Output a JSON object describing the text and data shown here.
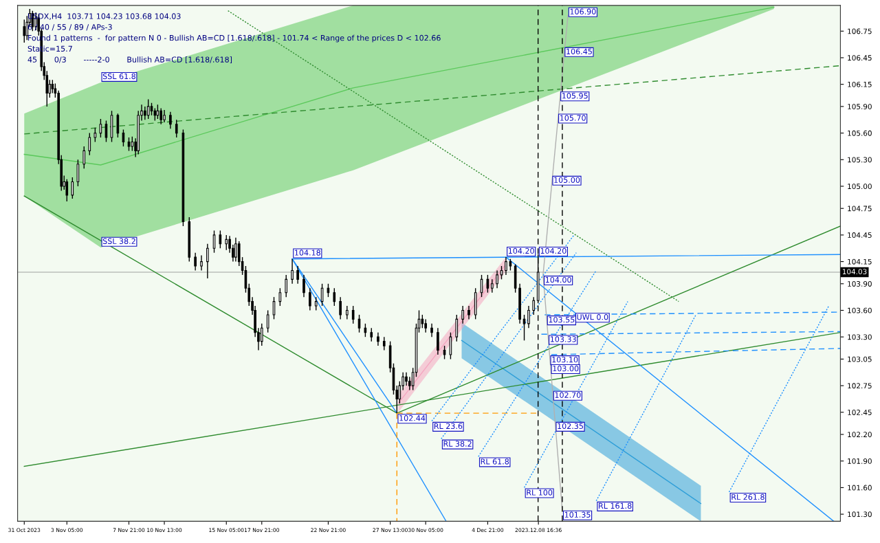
{
  "chart_data": {
    "type": "candlestick",
    "x": [
      "2023-10-31T00:00",
      "2023-10-31T05:00",
      "2023-10-31T10:00",
      "2023-10-31T15:00",
      "2023-10-31T21:00",
      "2023-11-01T02:00",
      "2023-11-01T07:00",
      "2023-11-01T12:00",
      "2023-11-01T17:00",
      "2023-11-01T22:00",
      "2023-11-02T03:00",
      "2023-11-02T08:00",
      "2023-11-02T14:00",
      "2023-11-02T19:00",
      "2023-11-03T00:00",
      "2023-11-03T05:00",
      "2023-11-03T15:00",
      "2023-11-04T01:00",
      "2023-11-04T12:00",
      "2023-11-04T22:00",
      "2023-11-05T08:00",
      "2023-11-05T18:00",
      "2023-11-06T04:00",
      "2023-11-06T14:00",
      "2023-11-07T01:00",
      "2023-11-07T11:00",
      "2023-11-07T21:00",
      "2023-11-08T03:00",
      "2023-11-08T09:00",
      "2023-11-08T14:00",
      "2023-11-08T20:00",
      "2023-11-09T02:00",
      "2023-11-09T08:00",
      "2023-11-09T14:00",
      "2023-11-09T20:00",
      "2023-11-10T01:00",
      "2023-11-10T07:00",
      "2023-11-10T13:00",
      "2023-11-11T00:00",
      "2023-11-11T11:00",
      "2023-11-11T23:00",
      "2023-11-12T10:00",
      "2023-11-12T21:00",
      "2023-11-13T08:00",
      "2023-11-13T19:00",
      "2023-11-14T07:00",
      "2023-11-14T18:00",
      "2023-11-15T05:00",
      "2023-11-15T11:00",
      "2023-11-15T17:00",
      "2023-11-15T22:00",
      "2023-11-16T04:00",
      "2023-11-16T10:00",
      "2023-11-16T16:00",
      "2023-11-16T22:00",
      "2023-11-17T04:00",
      "2023-11-17T09:00",
      "2023-11-17T15:00",
      "2023-11-17T21:00",
      "2023-11-18T08:00",
      "2023-11-18T19:00",
      "2023-11-19T06:00",
      "2023-11-19T17:00",
      "2023-11-20T04:00",
      "2023-11-20T14:00",
      "2023-11-21T01:00",
      "2023-11-21T12:00",
      "2023-11-21T23:00",
      "2023-11-22T10:00",
      "2023-11-22T21:00",
      "2023-11-23T08:00",
      "2023-11-23T19:00",
      "2023-11-24T07:00",
      "2023-11-24T18:00",
      "2023-11-25T05:00",
      "2023-11-25T16:00",
      "2023-11-26T03:00",
      "2023-11-26T15:00",
      "2023-11-27T02:00",
      "2023-11-27T13:00",
      "2023-11-27T19:00",
      "2023-11-28T01:00",
      "2023-11-28T06:00",
      "2023-11-28T12:00",
      "2023-11-28T18:00",
      "2023-11-29T00:00",
      "2023-11-29T06:00",
      "2023-11-29T12:00",
      "2023-11-29T17:00",
      "2023-11-29T23:00",
      "2023-11-30T05:00",
      "2023-11-30T16:00",
      "2023-12-01T03:00",
      "2023-12-01T15:00",
      "2023-12-02T02:00",
      "2023-12-02T13:00",
      "2023-12-03T00:00",
      "2023-12-03T11:00",
      "2023-12-03T23:00",
      "2023-12-04T10:00",
      "2023-12-04T21:00",
      "2023-12-05T05:00",
      "2023-12-05T14:00",
      "2023-12-05T22:00",
      "2023-12-06T06:00",
      "2023-12-06T14:00",
      "2023-12-06T23:00",
      "2023-12-07T07:00",
      "2023-12-07T15:00",
      "2023-12-07T23:00",
      "2023-12-08T08:00",
      "2023-12-08T16:00"
    ],
    "ohlc": [
      [
        106.8,
        106.88,
        106.62,
        106.7
      ],
      [
        106.7,
        106.92,
        106.65,
        106.85
      ],
      [
        106.85,
        107.0,
        106.8,
        106.95
      ],
      [
        106.95,
        106.98,
        106.75,
        106.8
      ],
      [
        106.8,
        106.96,
        106.76,
        106.9
      ],
      [
        106.9,
        106.94,
        106.7,
        106.75
      ],
      [
        106.75,
        106.78,
        106.3,
        106.35
      ],
      [
        106.35,
        106.4,
        106.2,
        106.25
      ],
      [
        106.25,
        106.3,
        105.9,
        106.05
      ],
      [
        106.05,
        106.2,
        106.0,
        106.15
      ],
      [
        106.15,
        106.2,
        106.05,
        106.1
      ],
      [
        106.1,
        106.16,
        106.0,
        106.05
      ],
      [
        106.05,
        106.08,
        105.25,
        105.3
      ],
      [
        105.3,
        105.35,
        104.95,
        105.0
      ],
      [
        105.0,
        105.12,
        104.96,
        105.05
      ],
      [
        105.05,
        105.08,
        104.83,
        104.9
      ],
      [
        104.9,
        105.1,
        104.86,
        105.05
      ],
      [
        105.05,
        105.3,
        105.0,
        105.25
      ],
      [
        105.25,
        105.45,
        105.2,
        105.4
      ],
      [
        105.4,
        105.6,
        105.35,
        105.55
      ],
      [
        105.55,
        105.66,
        105.5,
        105.6
      ],
      [
        105.6,
        105.76,
        105.55,
        105.7
      ],
      [
        105.7,
        105.74,
        105.5,
        105.55
      ],
      [
        105.55,
        105.85,
        105.5,
        105.8
      ],
      [
        105.8,
        105.82,
        105.55,
        105.6
      ],
      [
        105.6,
        105.64,
        105.45,
        105.5
      ],
      [
        105.5,
        105.55,
        105.4,
        105.45
      ],
      [
        105.45,
        105.56,
        105.4,
        105.5
      ],
      [
        105.5,
        105.54,
        105.33,
        105.4
      ],
      [
        105.4,
        105.85,
        105.36,
        105.8
      ],
      [
        105.8,
        105.92,
        105.74,
        105.85
      ],
      [
        105.85,
        105.9,
        105.75,
        105.8
      ],
      [
        105.8,
        105.98,
        105.76,
        105.9
      ],
      [
        105.9,
        105.94,
        105.8,
        105.85
      ],
      [
        105.85,
        105.88,
        105.74,
        105.8
      ],
      [
        105.8,
        105.92,
        105.76,
        105.85
      ],
      [
        105.85,
        105.88,
        105.7,
        105.75
      ],
      [
        105.75,
        105.86,
        105.72,
        105.8
      ],
      [
        105.8,
        105.84,
        105.65,
        105.7
      ],
      [
        105.7,
        105.75,
        105.55,
        105.6
      ],
      [
        105.6,
        105.64,
        104.55,
        104.6
      ],
      [
        104.6,
        104.65,
        104.15,
        104.2
      ],
      [
        104.2,
        104.25,
        104.05,
        104.1
      ],
      [
        104.1,
        104.22,
        104.05,
        104.15
      ],
      [
        104.15,
        104.35,
        103.96,
        104.3
      ],
      [
        104.3,
        104.5,
        104.25,
        104.45
      ],
      [
        104.45,
        104.5,
        104.3,
        104.35
      ],
      [
        104.35,
        104.45,
        104.28,
        104.4
      ],
      [
        104.4,
        104.44,
        104.25,
        104.3
      ],
      [
        104.3,
        104.34,
        104.15,
        104.2
      ],
      [
        104.2,
        104.42,
        104.15,
        104.35
      ],
      [
        104.35,
        104.38,
        104.1,
        104.15
      ],
      [
        104.15,
        104.2,
        104.0,
        104.05
      ],
      [
        104.05,
        104.1,
        103.8,
        103.85
      ],
      [
        103.85,
        103.9,
        103.65,
        103.7
      ],
      [
        103.7,
        103.75,
        103.55,
        103.6
      ],
      [
        103.6,
        103.65,
        103.3,
        103.35
      ],
      [
        103.35,
        103.4,
        103.15,
        103.25
      ],
      [
        103.25,
        103.45,
        103.2,
        103.4
      ],
      [
        103.4,
        103.6,
        103.35,
        103.55
      ],
      [
        103.55,
        103.75,
        103.5,
        103.7
      ],
      [
        103.7,
        103.85,
        103.65,
        103.8
      ],
      [
        103.8,
        104.0,
        103.75,
        103.95
      ],
      [
        103.95,
        104.18,
        103.9,
        104.05
      ],
      [
        104.05,
        104.1,
        103.9,
        103.95
      ],
      [
        103.95,
        104.0,
        103.75,
        103.8
      ],
      [
        103.8,
        103.85,
        103.6,
        103.65
      ],
      [
        103.65,
        103.75,
        103.6,
        103.7
      ],
      [
        103.7,
        103.9,
        103.65,
        103.85
      ],
      [
        103.85,
        103.9,
        103.75,
        103.8
      ],
      [
        103.8,
        103.85,
        103.65,
        103.7
      ],
      [
        103.7,
        103.75,
        103.5,
        103.55
      ],
      [
        103.55,
        103.65,
        103.5,
        103.6
      ],
      [
        103.6,
        103.65,
        103.45,
        103.5
      ],
      [
        103.5,
        103.55,
        103.35,
        103.4
      ],
      [
        103.4,
        103.45,
        103.3,
        103.35
      ],
      [
        103.35,
        103.4,
        103.25,
        103.3
      ],
      [
        103.3,
        103.35,
        103.2,
        103.25
      ],
      [
        103.25,
        103.3,
        103.15,
        103.2
      ],
      [
        103.2,
        103.25,
        102.9,
        102.95
      ],
      [
        102.95,
        103.0,
        102.65,
        102.7
      ],
      [
        102.7,
        102.75,
        102.44,
        102.6
      ],
      [
        102.6,
        102.8,
        102.55,
        102.75
      ],
      [
        102.75,
        102.9,
        102.7,
        102.85
      ],
      [
        102.85,
        102.9,
        102.75,
        102.8
      ],
      [
        102.8,
        102.85,
        102.7,
        102.75
      ],
      [
        102.75,
        102.95,
        102.7,
        102.9
      ],
      [
        102.9,
        103.45,
        102.85,
        103.4
      ],
      [
        103.4,
        103.6,
        103.35,
        103.5
      ],
      [
        103.5,
        103.55,
        103.4,
        103.45
      ],
      [
        103.45,
        103.5,
        103.35,
        103.4
      ],
      [
        103.4,
        103.45,
        103.3,
        103.35
      ],
      [
        103.35,
        103.4,
        103.1,
        103.15
      ],
      [
        103.15,
        103.2,
        103.05,
        103.1
      ],
      [
        103.1,
        103.35,
        103.05,
        103.3
      ],
      [
        103.3,
        103.55,
        103.25,
        103.5
      ],
      [
        103.5,
        103.65,
        103.45,
        103.6
      ],
      [
        103.6,
        103.65,
        103.5,
        103.55
      ],
      [
        103.55,
        103.85,
        103.5,
        103.8
      ],
      [
        103.8,
        104.0,
        103.75,
        103.95
      ],
      [
        103.95,
        104.0,
        103.8,
        103.85
      ],
      [
        103.85,
        103.95,
        103.8,
        103.9
      ],
      [
        103.9,
        104.05,
        103.85,
        104.0
      ],
      [
        104.0,
        104.1,
        103.95,
        104.05
      ],
      [
        104.05,
        104.2,
        104.0,
        104.15
      ],
      [
        104.15,
        104.18,
        104.05,
        104.1
      ],
      [
        104.1,
        104.12,
        103.8,
        103.85
      ],
      [
        103.85,
        103.9,
        103.45,
        103.5
      ],
      [
        103.5,
        103.55,
        103.26,
        103.45
      ],
      [
        103.45,
        103.65,
        103.4,
        103.6
      ],
      [
        103.6,
        103.75,
        103.55,
        103.71
      ],
      [
        103.71,
        104.23,
        103.68,
        104.03
      ]
    ],
    "series": [
      {
        "type": "line",
        "color": "#5cc95c",
        "x": [
          "2023-10-31T00:00",
          "2023-11-05T18:00",
          "2023-11-24T18:00",
          "2023-12-26T10:00"
        ],
        "values": [
          105.36,
          105.24,
          106.11,
          107.02
        ],
        "lower": [
          104.89,
          104.31,
          105.18,
          107.0
        ],
        "upper": [
          105.82,
          106.17,
          107.04,
          107.04
        ]
      },
      {
        "type": "line",
        "color": "#2f9fd8",
        "x": [
          "2023-12-02T22:00",
          "2023-12-20T22:00"
        ],
        "values": [
          103.26,
          101.42
        ],
        "lower": [
          103.06,
          101.22
        ],
        "upper": [
          103.46,
          101.62
        ]
      },
      {
        "type": "line",
        "color": "#f4a6c0",
        "x": [
          "2023-11-28T03:30",
          "2023-12-06T06:00"
        ],
        "values": [
          102.55,
          104.12
        ],
        "lower": [
          102.45,
          104.04
        ],
        "upper": [
          102.65,
          104.2
        ]
      },
      {
        "type": "line",
        "color": "#2e8b2e",
        "x": [
          "2023-10-31T00:00",
          "2023-11-28T01:00"
        ],
        "values": [
          104.89,
          102.44
        ]
      },
      {
        "type": "line",
        "color": "#2e8b2e",
        "x": [
          "2023-11-28T01:00",
          "2023-12-31T10:00"
        ],
        "values": [
          102.44,
          104.55
        ]
      },
      {
        "type": "line",
        "color": "#2e8b2e",
        "x": [
          "2023-10-31T00:00",
          "2023-12-31T10:00"
        ],
        "values": [
          101.84,
          103.35
        ]
      },
      {
        "type": "line",
        "color": "#2e8b2e",
        "line_style": "dashed",
        "x": [
          "2023-10-31T00:00",
          "2023-12-31T10:00"
        ],
        "values": [
          105.59,
          106.36
        ]
      },
      {
        "type": "line",
        "color": "#2e8b2e",
        "line_style": "dotted",
        "x": [
          "2023-11-15T08:00",
          "2023-12-19T06:00"
        ],
        "values": [
          106.98,
          103.7
        ]
      },
      {
        "type": "line",
        "color": "#1e90ff",
        "x": [
          "2023-11-20T04:00",
          "2023-12-31T10:00"
        ],
        "values": [
          104.18,
          104.23
        ]
      },
      {
        "type": "line",
        "color": "#1e90ff",
        "x": [
          "2023-11-20T04:00",
          "2023-11-28T01:00"
        ],
        "values": [
          104.18,
          102.44
        ]
      },
      {
        "type": "line",
        "color": "#1e90ff",
        "x": [
          "2023-11-20T04:00",
          "2023-12-01T18:00"
        ],
        "values": [
          104.18,
          101.22
        ]
      },
      {
        "type": "line",
        "color": "#1e90ff",
        "line_style": "dashed",
        "x": [
          "2023-12-09T04:00",
          "2023-12-31T10:00"
        ],
        "values": [
          103.55,
          103.58
        ]
      },
      {
        "type": "line",
        "color": "#1e90ff",
        "line_style": "dashed",
        "x": [
          "2023-12-08T22:00",
          "2023-12-31T10:00"
        ],
        "values": [
          103.33,
          103.36
        ]
      },
      {
        "type": "line",
        "color": "#1e90ff",
        "line_style": "dashed",
        "x": [
          "2023-12-09T16:00",
          "2023-12-31T10:00"
        ],
        "values": [
          103.1,
          103.17
        ]
      },
      {
        "type": "line",
        "color": "#ff9900",
        "line_style": "dashed",
        "x": [
          "2023-11-28T01:00",
          "2023-12-08T16:00"
        ],
        "values": [
          102.44,
          102.44
        ]
      },
      {
        "type": "line",
        "color": "#ff9900",
        "line_style": "dashed",
        "x": [
          "2023-11-28T01:00",
          "2023-11-28T01:00"
        ],
        "values": [
          102.44,
          101.22
        ]
      },
      {
        "type": "line",
        "color": "#b0b0b0",
        "x": [
          "2023-12-10T22:00",
          "2023-12-09T01:00",
          "2023-12-10T11:48"
        ],
        "values": [
          106.93,
          104.0,
          101.34
        ]
      },
      {
        "type": "line",
        "color": "#1e90ff",
        "line_style": "dotted",
        "x": [
          "2023-11-30T16:00",
          "2023-12-11T09:00"
        ],
        "values": [
          102.35,
          104.45
        ]
      },
      {
        "type": "line",
        "color": "#1e90ff",
        "line_style": "dotted",
        "x": [
          "2023-12-01T09:00",
          "2023-12-11T13:00"
        ],
        "values": [
          102.15,
          104.25
        ]
      },
      {
        "type": "line",
        "color": "#1e90ff",
        "line_style": "dotted",
        "x": [
          "2023-12-04T04:12",
          "2023-12-13T01:00"
        ],
        "values": [
          101.95,
          104.05
        ]
      },
      {
        "type": "line",
        "color": "#1e90ff",
        "line_style": "dotted",
        "x": [
          "2023-12-07T15:00",
          "2023-12-15T10:00"
        ],
        "values": [
          101.6,
          103.7
        ]
      },
      {
        "type": "line",
        "color": "#1e90ff",
        "line_style": "dotted",
        "x": [
          "2023-12-13T01:00",
          "2023-12-20T13:00"
        ],
        "values": [
          101.45,
          103.55
        ]
      },
      {
        "type": "line",
        "color": "#1e90ff",
        "line_style": "dotted",
        "x": [
          "2023-12-23T01:00",
          "2023-12-30T13:00"
        ],
        "values": [
          101.55,
          103.65
        ]
      },
      {
        "type": "line",
        "color": "#1e90ff",
        "x": [
          "2023-12-06T06:00",
          "2023-12-30T22:00"
        ],
        "values": [
          104.2,
          101.22
        ]
      }
    ],
    "ref_lines": [
      {
        "axis": "x",
        "value": "2023-12-08T16:00",
        "color": "#000000",
        "line_style": "dashed"
      },
      {
        "axis": "x",
        "value": "2023-12-10T11:48",
        "color": "#000000",
        "line_style": "dashed"
      },
      {
        "axis": "y",
        "value": 104.03,
        "label": "104.03",
        "color": "#a0a0a0",
        "line_style": "solid"
      }
    ],
    "annotations": [
      "USDX,H4  103.71 104.23 103.68 104.03",
      "6 / 40 / 55 / 89 / APs-3",
      "Found 1 patterns  -  for pattern N 0 - Bullish AB=CD [1.618/.618] - 101.74 < Range of the prices D < 102.66",
      "Static=15.7",
      "45       0/3       -----2-0       Bullish AB=CD [1.618/.618]",
      {
        "text": "106.90",
        "x": "2023-12-10T21:24",
        "y": 106.9
      },
      {
        "text": "106.45",
        "x": "2023-12-10T14:37",
        "y": 106.45
      },
      {
        "text": "105.95",
        "x": "2023-12-10T06:56",
        "y": 105.95
      },
      {
        "text": "105.70",
        "x": "2023-12-10T03:06",
        "y": 105.7
      },
      {
        "text": "105.00",
        "x": "2023-12-09T16:22",
        "y": 105.0
      },
      {
        "text": "104.20",
        "x": "2023-12-08T16:00",
        "y": 104.2
      },
      {
        "text": "104.00",
        "x": "2023-12-09T01:00",
        "y": 104.0
      },
      {
        "text": "103.55",
        "x": "2023-12-09T06:53",
        "y": 103.55
      },
      {
        "text": "103.33",
        "x": "2023-12-09T09:46",
        "y": 103.33
      },
      {
        "text": "103.10",
        "x": "2023-12-09T12:46",
        "y": 103.1
      },
      {
        "text": "103.00",
        "x": "2023-12-09T14:05",
        "y": 103.0
      },
      {
        "text": "102.70",
        "x": "2023-12-09T18:02",
        "y": 102.7
      },
      {
        "text": "102.35",
        "x": "2023-12-09T22:36",
        "y": 102.35
      },
      {
        "text": "101.35",
        "x": "2023-12-10T11:41",
        "y": 101.35
      },
      {
        "text": "104.18",
        "x": "2023-11-20T04:00",
        "y": 104.18
      },
      {
        "text": "104.20",
        "x": "2023-12-06T06:00",
        "y": 104.2
      },
      {
        "text": "102.44",
        "x": "2023-11-28T01:00",
        "y": 102.44
      },
      {
        "text": "SSL 61.8",
        "x": "2023-11-05T18:00",
        "y": 106.17
      },
      {
        "text": "SSL 38.2",
        "x": "2023-11-05T18:00",
        "y": 104.31
      },
      {
        "text": "UWL 0.0",
        "x": "2023-12-11T10:00",
        "y": 103.58
      },
      {
        "text": "RL 23.6",
        "x": "2023-11-30T16:00",
        "y": 102.35
      },
      {
        "text": "RL 38.2",
        "x": "2023-12-01T09:00",
        "y": 102.15
      },
      {
        "text": "RL 61.8",
        "x": "2023-12-04T04:12",
        "y": 101.95
      },
      {
        "text": "RL 100",
        "x": "2023-12-07T15:00",
        "y": 101.6
      },
      {
        "text": "RL 161.8",
        "x": "2023-12-13T01:00",
        "y": 101.45
      },
      {
        "text": "RL 261.8",
        "x": "2023-12-23T01:00",
        "y": 101.55
      }
    ],
    "xlim": [
      "2023-10-30T12:00",
      "2023-12-31T10:00"
    ],
    "xticks": [
      {
        "value": "2023-10-31T00:00",
        "label": "31 Oct 2023"
      },
      {
        "value": "2023-11-03T05:00",
        "label": "3 Nov 05:00"
      },
      {
        "value": "2023-11-07T21:00",
        "label": "7 Nov 21:00"
      },
      {
        "value": "2023-11-10T13:00",
        "label": "10 Nov 13:00"
      },
      {
        "value": "2023-11-15T05:00",
        "label": "15 Nov 05:00"
      },
      {
        "value": "2023-11-17T21:00",
        "label": "17 Nov 21:00"
      },
      {
        "value": "2023-11-22T21:00",
        "label": "22 Nov 21:00"
      },
      {
        "value": "2023-11-27T13:00",
        "label": "27 Nov 13:00"
      },
      {
        "value": "2023-11-30T05:00",
        "label": "30 Nov 05:00"
      },
      {
        "value": "2023-12-04T21:00",
        "label": "4 Dec 21:00"
      },
      {
        "value": "2023-12-08T16:36",
        "label": "2023.12.08 16:36"
      }
    ],
    "ylim": [
      101.22,
      107.04
    ],
    "yticks": [
      {
        "value": 106.75,
        "label": "106.75"
      },
      {
        "value": 106.45,
        "label": "106.45"
      },
      {
        "value": 106.15,
        "label": "106.15"
      },
      {
        "value": 105.9,
        "label": "105.90"
      },
      {
        "value": 105.6,
        "label": "105.60"
      },
      {
        "value": 105.3,
        "label": "105.30"
      },
      {
        "value": 105.0,
        "label": "105.00"
      },
      {
        "value": 104.75,
        "label": "104.75"
      },
      {
        "value": 104.45,
        "label": "104.45"
      },
      {
        "value": 104.15,
        "label": "104.15"
      },
      {
        "value": 103.9,
        "label": "103.90"
      },
      {
        "value": 103.6,
        "label": "103.60"
      },
      {
        "value": 103.3,
        "label": "103.30"
      },
      {
        "value": 103.05,
        "label": "103.05"
      },
      {
        "value": 102.75,
        "label": "102.75"
      },
      {
        "value": 102.45,
        "label": "102.45"
      },
      {
        "value": 102.2,
        "label": "102.20"
      },
      {
        "value": 101.9,
        "label": "101.90"
      },
      {
        "value": 101.6,
        "label": "101.60"
      },
      {
        "value": 101.3,
        "label": "101.30"
      }
    ],
    "grid": false,
    "legend": false
  }
}
